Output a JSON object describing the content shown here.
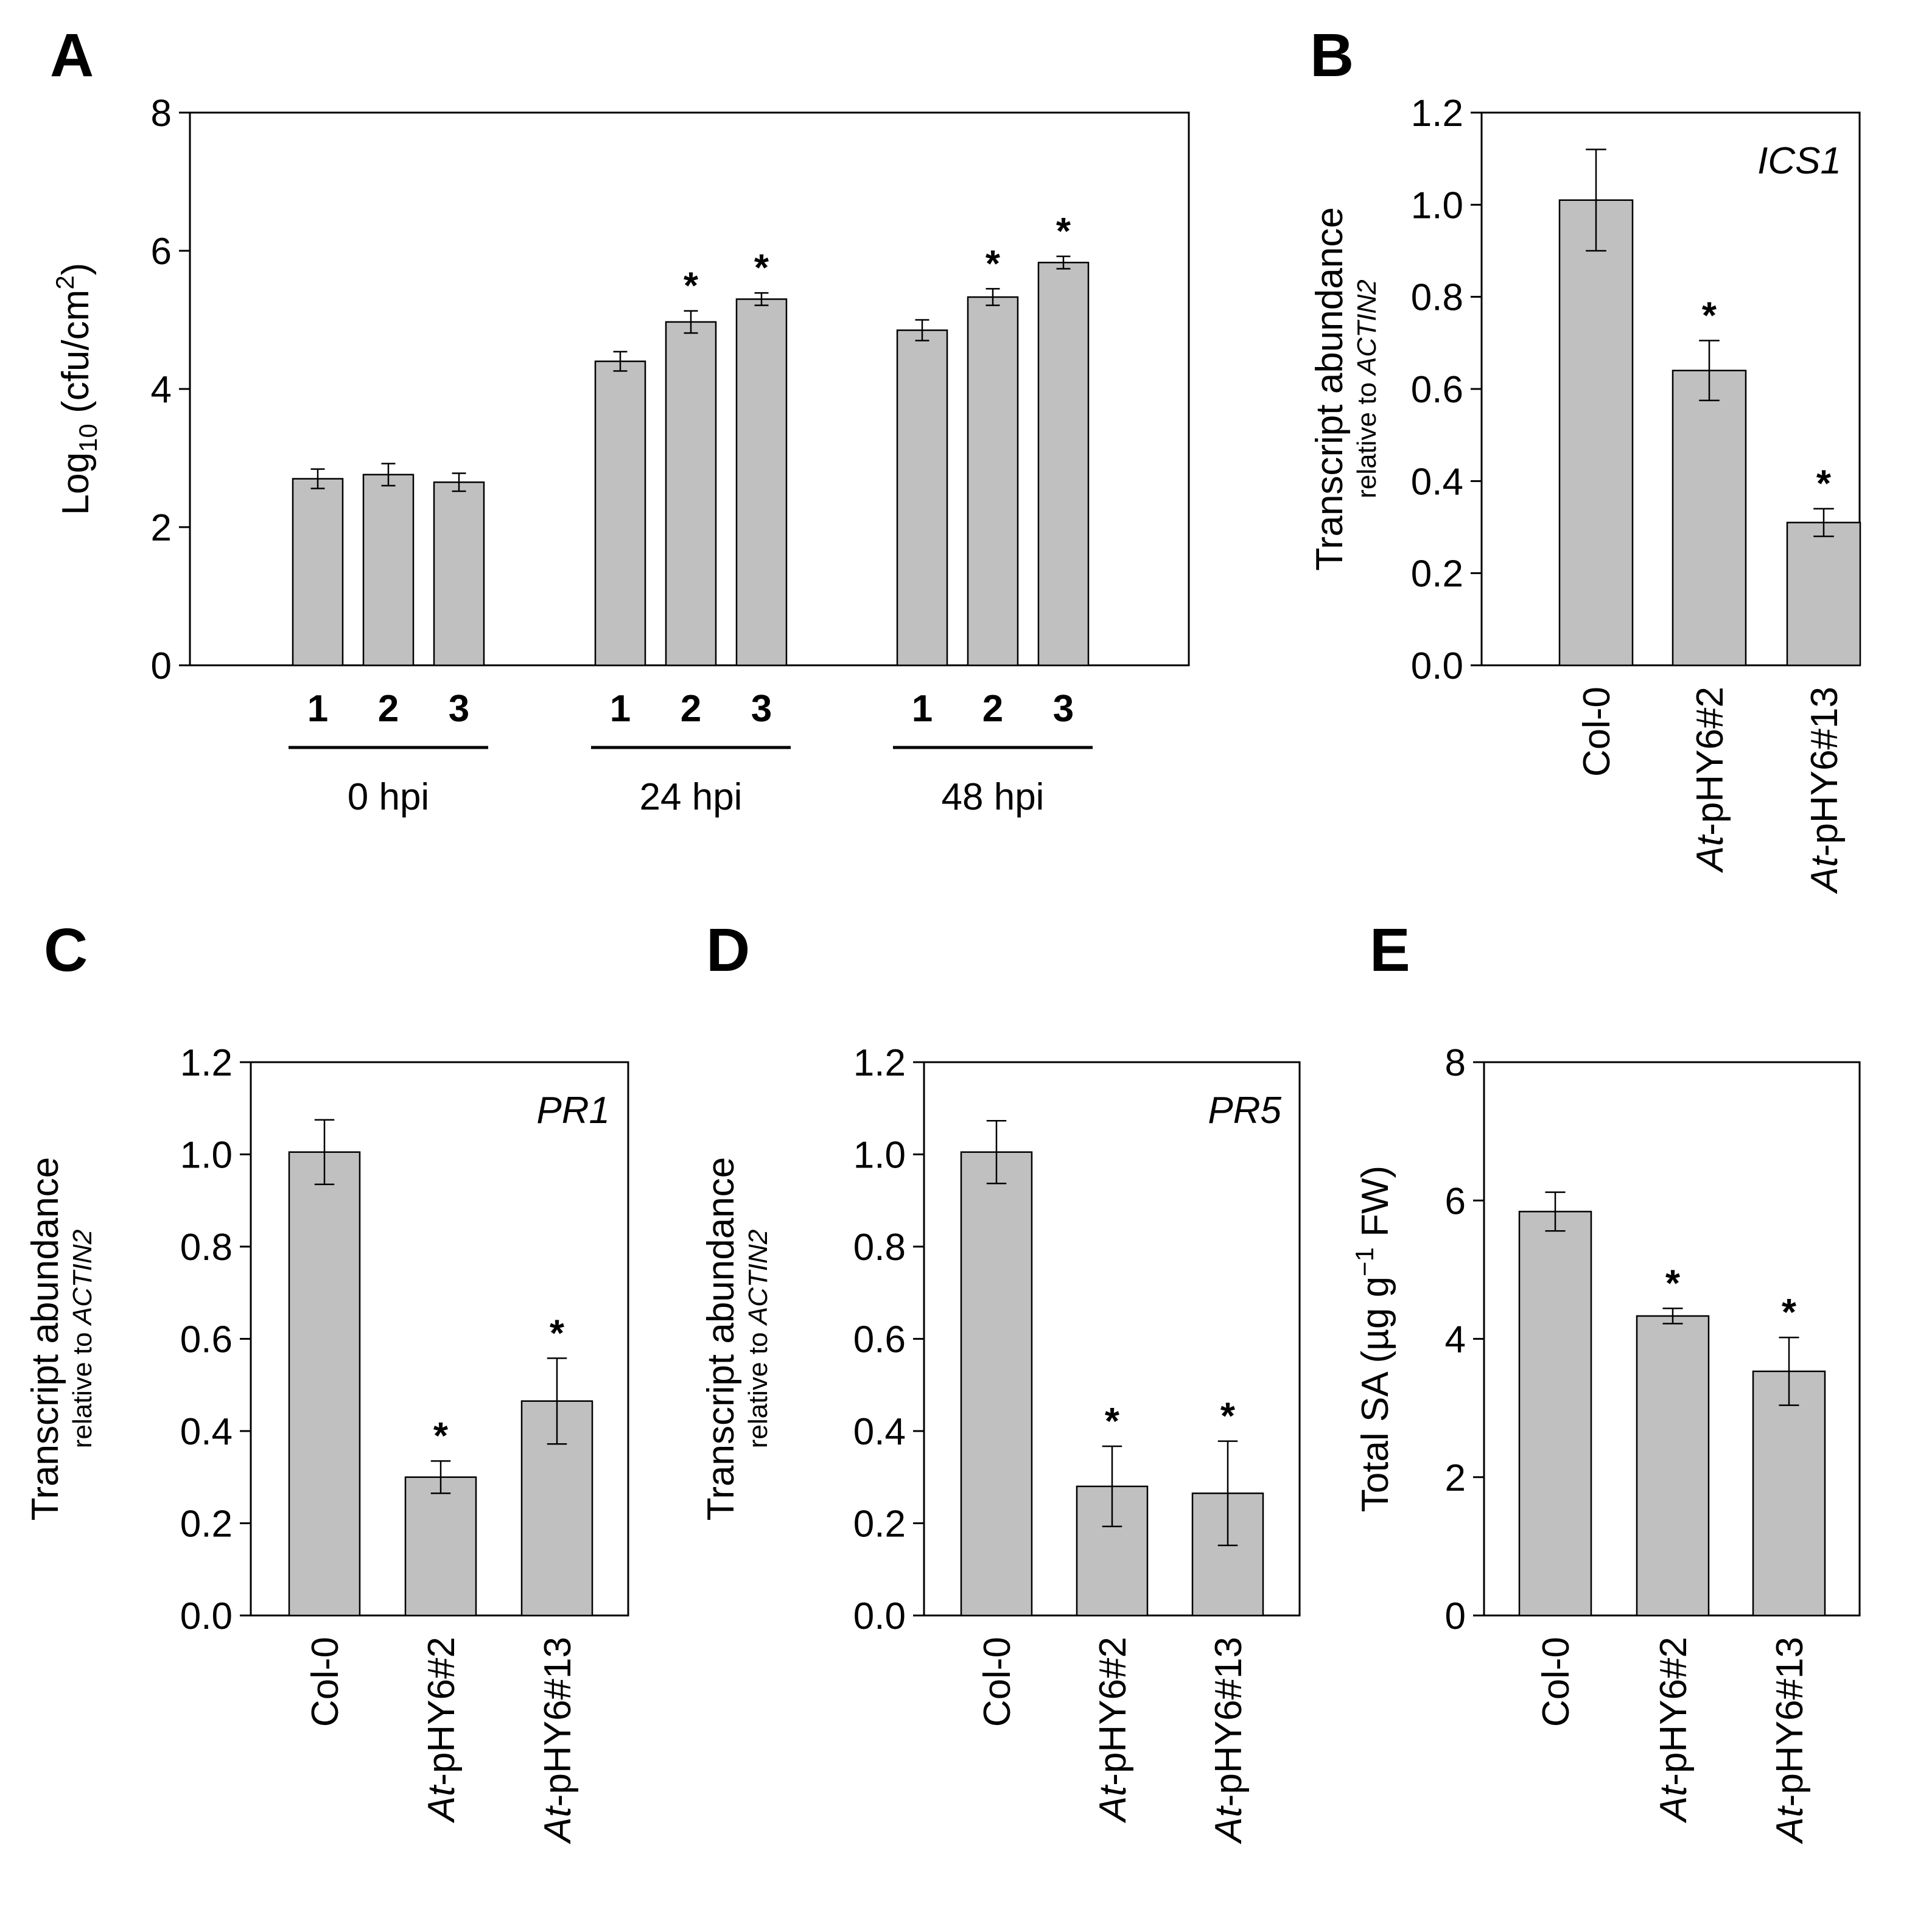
{
  "colors": {
    "bar": "#c0c0c0",
    "stroke": "#000000",
    "background": "#ffffff"
  },
  "chart_data": [
    {
      "panel": "A",
      "type": "bar",
      "ylabel": {
        "prefix": "Log",
        "sub": "10",
        "mid": " (cfu/cm",
        "sup": "2",
        "suffix": ")"
      },
      "ylim": [
        0,
        8
      ],
      "yticks": [
        {
          "v": 0,
          "label": "0"
        },
        {
          "v": 2,
          "label": "2"
        },
        {
          "v": 4,
          "label": "4"
        },
        {
          "v": 6,
          "label": "6"
        },
        {
          "v": 8,
          "label": "8"
        }
      ],
      "groups": [
        {
          "name": "0 hpi",
          "bars": [
            {
              "label": "1",
              "value": 2.7,
              "error": 0.14,
              "sig": false
            },
            {
              "label": "2",
              "value": 2.76,
              "error": 0.16,
              "sig": false
            },
            {
              "label": "3",
              "value": 2.65,
              "error": 0.13,
              "sig": false
            }
          ]
        },
        {
          "name": "24 hpi",
          "bars": [
            {
              "label": "1",
              "value": 4.4,
              "error": 0.14,
              "sig": false
            },
            {
              "label": "2",
              "value": 4.97,
              "error": 0.16,
              "sig": true
            },
            {
              "label": "3",
              "value": 5.3,
              "error": 0.09,
              "sig": true
            }
          ]
        },
        {
          "name": "48 hpi",
          "bars": [
            {
              "label": "1",
              "value": 4.85,
              "error": 0.15,
              "sig": false
            },
            {
              "label": "2",
              "value": 5.33,
              "error": 0.12,
              "sig": true
            },
            {
              "label": "3",
              "value": 5.83,
              "error": 0.09,
              "sig": true
            }
          ]
        }
      ],
      "sig_marker": "*"
    },
    {
      "panel": "B",
      "type": "bar",
      "gene": "ICS1",
      "ylabel": {
        "main": "Transcript abundance",
        "sub_prefix": "relative to ",
        "sub_italic": "ACTIN2"
      },
      "ylim": [
        0,
        1.2
      ],
      "yticks": [
        {
          "v": 0,
          "label": "0.0"
        },
        {
          "v": 0.2,
          "label": "0.2"
        },
        {
          "v": 0.4,
          "label": "0.4"
        },
        {
          "v": 0.6,
          "label": "0.6"
        },
        {
          "v": 0.8,
          "label": "0.8"
        },
        {
          "v": 1.0,
          "label": "1.0"
        },
        {
          "v": 1.2,
          "label": "1.2"
        }
      ],
      "bars": [
        {
          "italic": "",
          "label": "Col-0",
          "value": 1.01,
          "error": 0.11,
          "sig": false
        },
        {
          "italic": "At",
          "label": "-pHY6#2",
          "value": 0.64,
          "error": 0.065,
          "sig": true
        },
        {
          "italic": "At",
          "label": "-pHY6#13",
          "value": 0.31,
          "error": 0.03,
          "sig": true
        }
      ],
      "sig_marker": "*"
    },
    {
      "panel": "C",
      "type": "bar",
      "gene": "PR1",
      "ylabel": {
        "main": "Transcript abundance",
        "sub_prefix": "relative to ",
        "sub_italic": "ACTIN2"
      },
      "ylim": [
        0,
        1.2
      ],
      "yticks": [
        {
          "v": 0,
          "label": "0.0"
        },
        {
          "v": 0.2,
          "label": "0.2"
        },
        {
          "v": 0.4,
          "label": "0.4"
        },
        {
          "v": 0.6,
          "label": "0.6"
        },
        {
          "v": 0.8,
          "label": "0.8"
        },
        {
          "v": 1.0,
          "label": "1.0"
        },
        {
          "v": 1.2,
          "label": "1.2"
        }
      ],
      "bars": [
        {
          "italic": "",
          "label": "Col-0",
          "value": 1.005,
          "error": 0.07,
          "sig": false
        },
        {
          "italic": "At",
          "label": "-pHY6#2",
          "value": 0.3,
          "error": 0.035,
          "sig": true
        },
        {
          "italic": "At",
          "label": "-pHY6#13",
          "value": 0.465,
          "error": 0.093,
          "sig": true
        }
      ],
      "sig_marker": "*"
    },
    {
      "panel": "D",
      "type": "bar",
      "gene": "PR5",
      "ylabel": {
        "main": "Transcript abundance",
        "sub_prefix": "relative to ",
        "sub_italic": "ACTIN2"
      },
      "ylim": [
        0,
        1.2
      ],
      "yticks": [
        {
          "v": 0,
          "label": "0.0"
        },
        {
          "v": 0.2,
          "label": "0.2"
        },
        {
          "v": 0.4,
          "label": "0.4"
        },
        {
          "v": 0.6,
          "label": "0.6"
        },
        {
          "v": 0.8,
          "label": "0.8"
        },
        {
          "v": 1.0,
          "label": "1.0"
        },
        {
          "v": 1.2,
          "label": "1.2"
        }
      ],
      "bars": [
        {
          "italic": "",
          "label": "Col-0",
          "value": 1.005,
          "error": 0.068,
          "sig": false
        },
        {
          "italic": "At",
          "label": "-pHY6#2",
          "value": 0.28,
          "error": 0.087,
          "sig": true
        },
        {
          "italic": "At",
          "label": "-pHY6#13",
          "value": 0.265,
          "error": 0.113,
          "sig": true
        }
      ],
      "sig_marker": "*"
    },
    {
      "panel": "E",
      "type": "bar",
      "ylabel": {
        "prefix": "Total SA (µg g",
        "sup": "−1",
        "suffix": " FW)"
      },
      "ylim": [
        0,
        8
      ],
      "yticks": [
        {
          "v": 0,
          "label": "0"
        },
        {
          "v": 2,
          "label": "2"
        },
        {
          "v": 4,
          "label": "4"
        },
        {
          "v": 6,
          "label": "6"
        },
        {
          "v": 8,
          "label": "8"
        }
      ],
      "bars": [
        {
          "italic": "",
          "label": "Col-0",
          "value": 5.84,
          "error": 0.28,
          "sig": false
        },
        {
          "italic": "At",
          "label": "-pHY6#2",
          "value": 4.33,
          "error": 0.11,
          "sig": true
        },
        {
          "italic": "At",
          "label": "-pHY6#13",
          "value": 3.53,
          "error": 0.49,
          "sig": true
        }
      ],
      "sig_marker": "*"
    }
  ]
}
